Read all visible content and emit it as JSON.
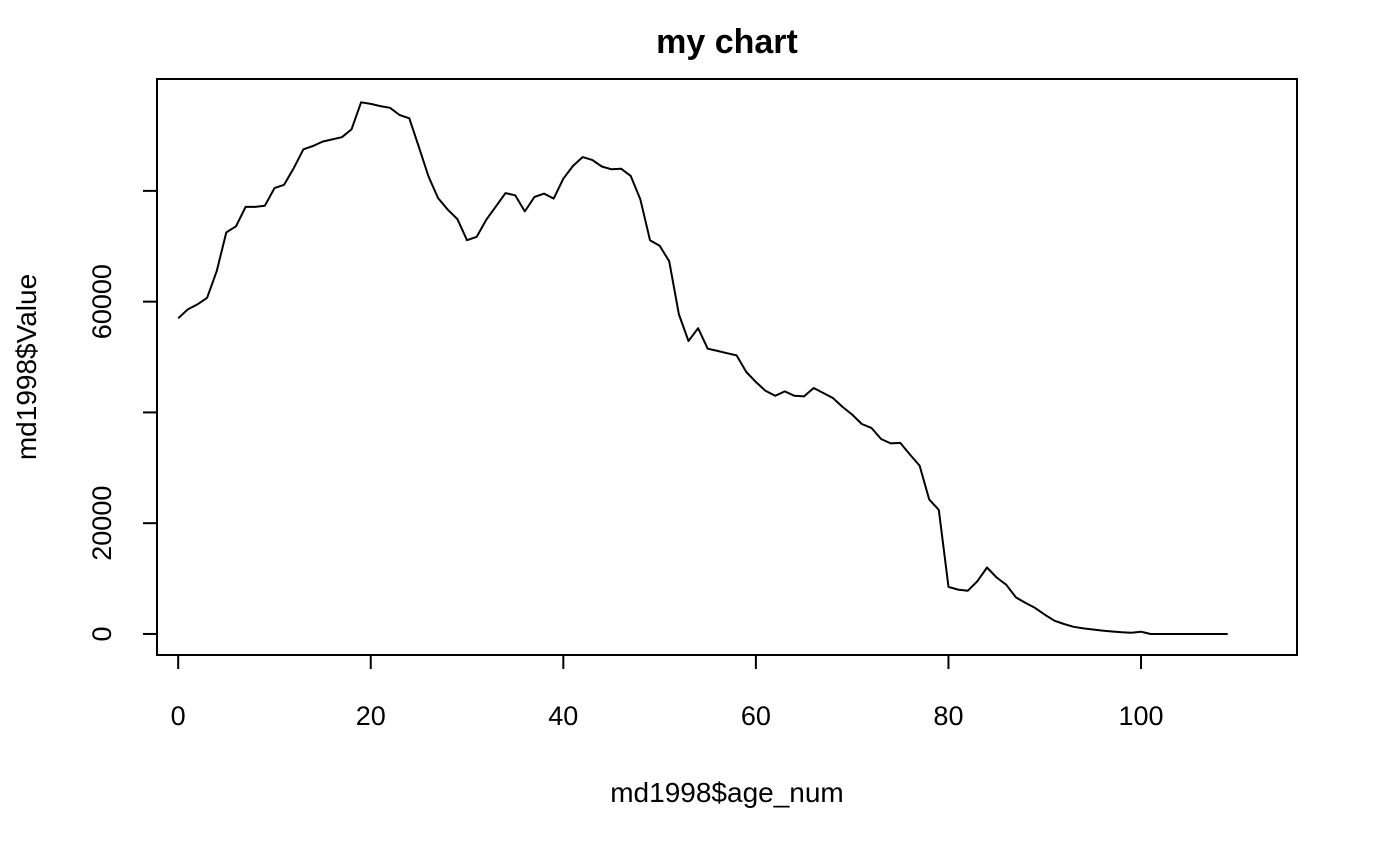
{
  "chart_data": {
    "type": "line",
    "title": "my chart",
    "xlabel": "md1998$age_num",
    "ylabel": "md1998$Value",
    "xlim": [
      -2.2,
      116.2
    ],
    "ylim": [
      -3800,
      100200
    ],
    "x_ticks": [
      0,
      20,
      40,
      60,
      80,
      100
    ],
    "x_tick_labels": [
      "0",
      "20",
      "40",
      "60",
      "80",
      "100"
    ],
    "y_ticks": [
      0,
      20000,
      40000,
      60000,
      80000
    ],
    "y_tick_labels": [
      "0",
      "20000",
      "",
      "60000",
      ""
    ],
    "grid": false,
    "line_color": "#000000",
    "series": [
      {
        "x": [
          0,
          1,
          2,
          3,
          4,
          5,
          6,
          7,
          8,
          9,
          10,
          11,
          12,
          13,
          14,
          15,
          16,
          17,
          18,
          19,
          20,
          21,
          22,
          23,
          24,
          25,
          26,
          27,
          28,
          29,
          30,
          31,
          32,
          33,
          34,
          35,
          36,
          37,
          38,
          39,
          40,
          41,
          42,
          43,
          44,
          45,
          46,
          47,
          48,
          49,
          50,
          51,
          52,
          53,
          54,
          55,
          56,
          57,
          58,
          59,
          60,
          61,
          62,
          63,
          64,
          65,
          66,
          67,
          68,
          69,
          70,
          71,
          72,
          73,
          74,
          75,
          76,
          77,
          78,
          79,
          80,
          81,
          82,
          83,
          84,
          85,
          86,
          87,
          88,
          89,
          90,
          91,
          92,
          93,
          94,
          95,
          96,
          97,
          98,
          99,
          100,
          101,
          102,
          103,
          104,
          105,
          106,
          107,
          108,
          109
        ],
        "y": [
          57000,
          58600,
          59500,
          60700,
          65500,
          72500,
          73600,
          77100,
          77100,
          77300,
          80500,
          81100,
          84100,
          87500,
          88100,
          88900,
          89300,
          89700,
          91100,
          96000,
          95700,
          95300,
          95000,
          93700,
          93100,
          87900,
          82600,
          78700,
          76600,
          74900,
          71100,
          71700,
          74800,
          77200,
          79600,
          79200,
          76300,
          78900,
          79500,
          78600,
          82200,
          84500,
          86100,
          85600,
          84400,
          83900,
          84000,
          82700,
          78500,
          71100,
          70100,
          67300,
          57700,
          52900,
          55200,
          51500,
          51100,
          50700,
          50300,
          47300,
          45500,
          43900,
          43000,
          43800,
          43000,
          42900,
          44400,
          43500,
          42600,
          41000,
          39600,
          37900,
          37200,
          35200,
          34400,
          34500,
          32400,
          30400,
          24300,
          22400,
          8500,
          8000,
          7800,
          9500,
          12000,
          10200,
          8900,
          6600,
          5600,
          4700,
          3500,
          2400,
          1800,
          1300,
          1000,
          800,
          600,
          450,
          300,
          200,
          400,
          0,
          0,
          0,
          0,
          0,
          0,
          0,
          0,
          0
        ]
      }
    ]
  }
}
